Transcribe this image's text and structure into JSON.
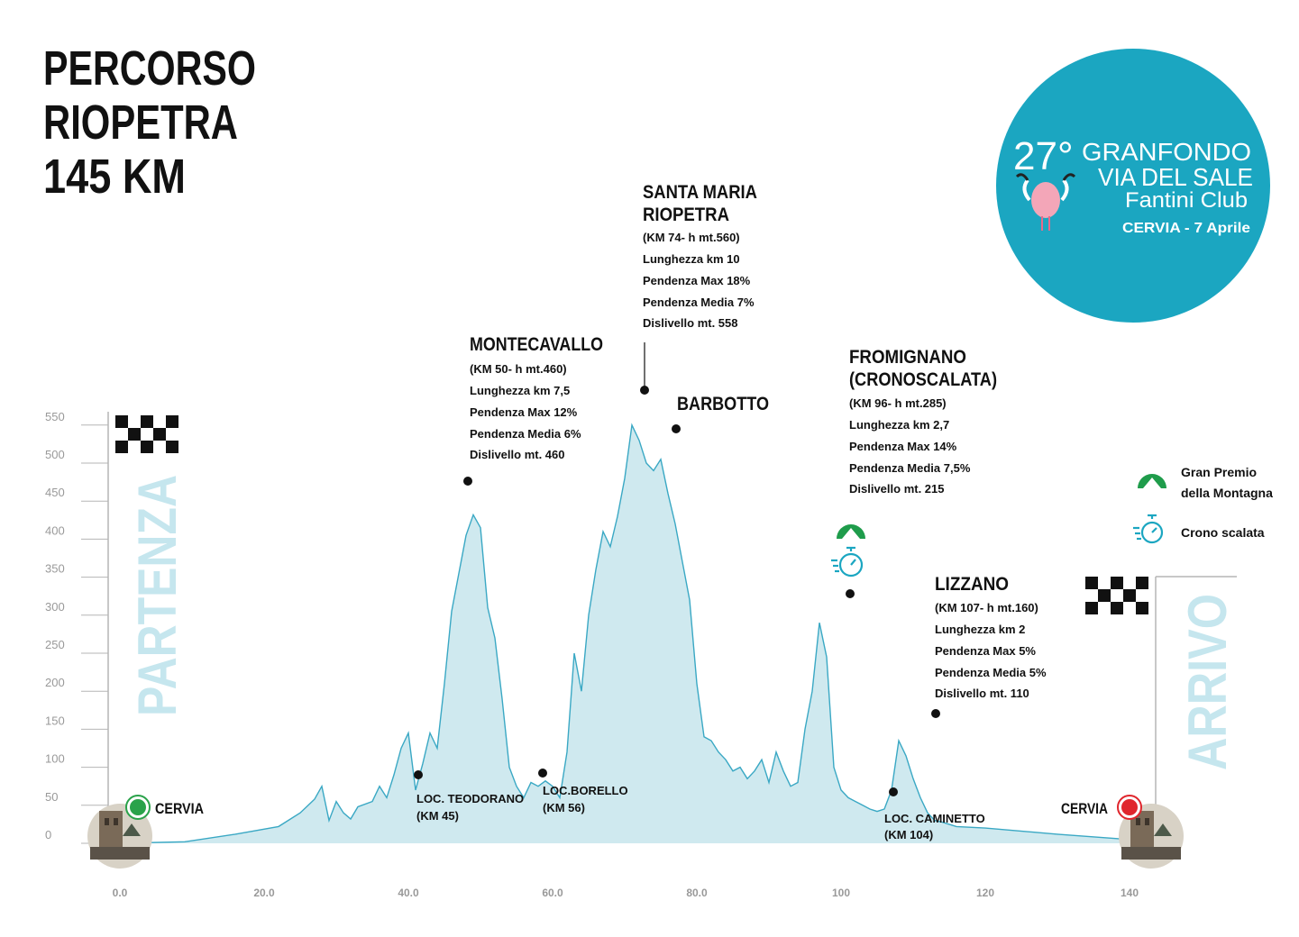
{
  "colors": {
    "profile_fill": "#cfe9ef",
    "profile_line": "#3aa8c4",
    "vertical_text": "#c5e6ee",
    "badge_bg": "#1ba6c1",
    "gpm_green": "#1f9c4b",
    "finish_red": "#e0262d",
    "start_green": "#2aa24a",
    "text": "#111111",
    "axis": "#b5b5b5"
  },
  "title": {
    "line1": "PERCORSO",
    "line2": "RIOPETRA",
    "line3": "145 KM"
  },
  "badge": {
    "number": "27°",
    "line1": "GRANFONDO",
    "line2": "VIA DEL SALE",
    "line3": "Fantini Club",
    "line4": "CERVIA - 7 Aprile",
    "logo_icon": "flamingo-icon"
  },
  "vertical_labels": {
    "start": "PARTENZA",
    "finish": "ARRIVO"
  },
  "legend": {
    "gpm_line1": "Gran Premio",
    "gpm_line2": "della Montagna",
    "crono": "Crono scalata",
    "gpm_icon": "mountain-icon",
    "crono_icon": "stopwatch-icon"
  },
  "endpoints": {
    "start_label": "CERVIA",
    "finish_label": "CERVIA",
    "start_icon": "green-dot-icon",
    "finish_icon": "red-dot-icon",
    "flag_icon": "checkered-flag-icon",
    "town_icon": "tower-photo-icon"
  },
  "climbs": {
    "montecavallo": {
      "name": "MONTECAVALLO",
      "lines": [
        "(KM 50- h mt.460)",
        "Lunghezza km 7,5",
        "Pendenza Max 12%",
        "Pendenza Media 6%",
        "Dislivello mt. 460"
      ]
    },
    "santa_maria": {
      "name1": "SANTA MARIA",
      "name2": "RIOPETRA",
      "lines": [
        "(KM 74- h mt.560)",
        "Lunghezza km 10",
        "Pendenza Max 18%",
        "Pendenza Media 7%",
        "Dislivello mt. 558"
      ]
    },
    "fromignano": {
      "name1": "FROMIGNANO",
      "name2": "(CRONOSCALATA)",
      "lines": [
        "(KM 96- h mt.285)",
        "Lunghezza km 2,7",
        "Pendenza Max 14%",
        "Pendenza Media 7,5%",
        "Dislivello mt. 215"
      ]
    },
    "lizzano": {
      "name": "LIZZANO",
      "lines": [
        "(KM 107- h mt.160)",
        "Lunghezza km 2",
        "Pendenza Max 5%",
        "Pendenza Media 5%",
        "Dislivello mt. 110"
      ]
    },
    "barbotto": {
      "name": "BARBOTTO"
    }
  },
  "localities": {
    "teodorano": {
      "line1": "LOC. TEODORANO",
      "line2": "(KM 45)"
    },
    "borello": {
      "line1": "LOC.BORELLO",
      "line2": "(KM 56)"
    },
    "caminetto": {
      "line1": "LOC. CAMINETTO",
      "line2": "(KM 104)"
    }
  },
  "chart_data": {
    "type": "area",
    "xlim": [
      0,
      145
    ],
    "ylim": [
      0,
      550
    ],
    "grid": false,
    "x_ticks": [
      "0.0",
      "20.0",
      "40.0",
      "60.0",
      "80.0",
      "100",
      "120",
      "140"
    ],
    "y_ticks": [
      "550",
      "500",
      "450",
      "400",
      "350",
      "300",
      "250",
      "200",
      "150",
      "100",
      "50",
      "0"
    ],
    "series": [
      {
        "x": [
          0,
          9,
          16,
          22,
          25,
          27,
          28,
          29,
          30,
          31,
          32,
          33,
          35,
          36,
          37,
          38,
          39,
          40,
          41,
          42,
          43,
          44,
          45,
          46,
          47,
          48,
          49,
          50,
          51,
          52,
          53,
          54,
          55,
          56,
          57,
          58,
          59,
          60,
          61,
          62,
          63,
          64,
          65,
          66,
          67,
          68,
          69,
          70,
          71,
          72,
          73,
          74,
          75,
          76,
          77,
          78,
          79,
          80,
          81,
          82,
          83,
          84,
          85,
          86,
          87,
          88,
          89,
          90,
          91,
          92,
          93,
          94,
          95,
          96,
          97,
          98,
          99,
          100,
          101,
          102,
          103,
          104,
          105,
          106,
          107,
          108,
          109,
          110,
          111,
          112,
          113,
          114,
          115,
          116,
          120,
          130,
          140,
          145
        ],
        "y": [
          0,
          2,
          12,
          22,
          40,
          58,
          75,
          30,
          55,
          40,
          32,
          48,
          55,
          75,
          60,
          90,
          125,
          145,
          70,
          105,
          145,
          125,
          210,
          305,
          355,
          405,
          432,
          415,
          310,
          270,
          190,
          100,
          75,
          60,
          80,
          75,
          82,
          75,
          60,
          120,
          250,
          200,
          300,
          360,
          410,
          390,
          430,
          480,
          550,
          530,
          500,
          490,
          505,
          460,
          420,
          370,
          320,
          210,
          140,
          135,
          120,
          110,
          95,
          100,
          85,
          95,
          110,
          80,
          120,
          95,
          75,
          80,
          150,
          200,
          290,
          245,
          100,
          70,
          60,
          55,
          50,
          45,
          42,
          45,
          70,
          135,
          115,
          85,
          60,
          40,
          30,
          28,
          25,
          22,
          20,
          12,
          5,
          0
        ]
      }
    ]
  }
}
